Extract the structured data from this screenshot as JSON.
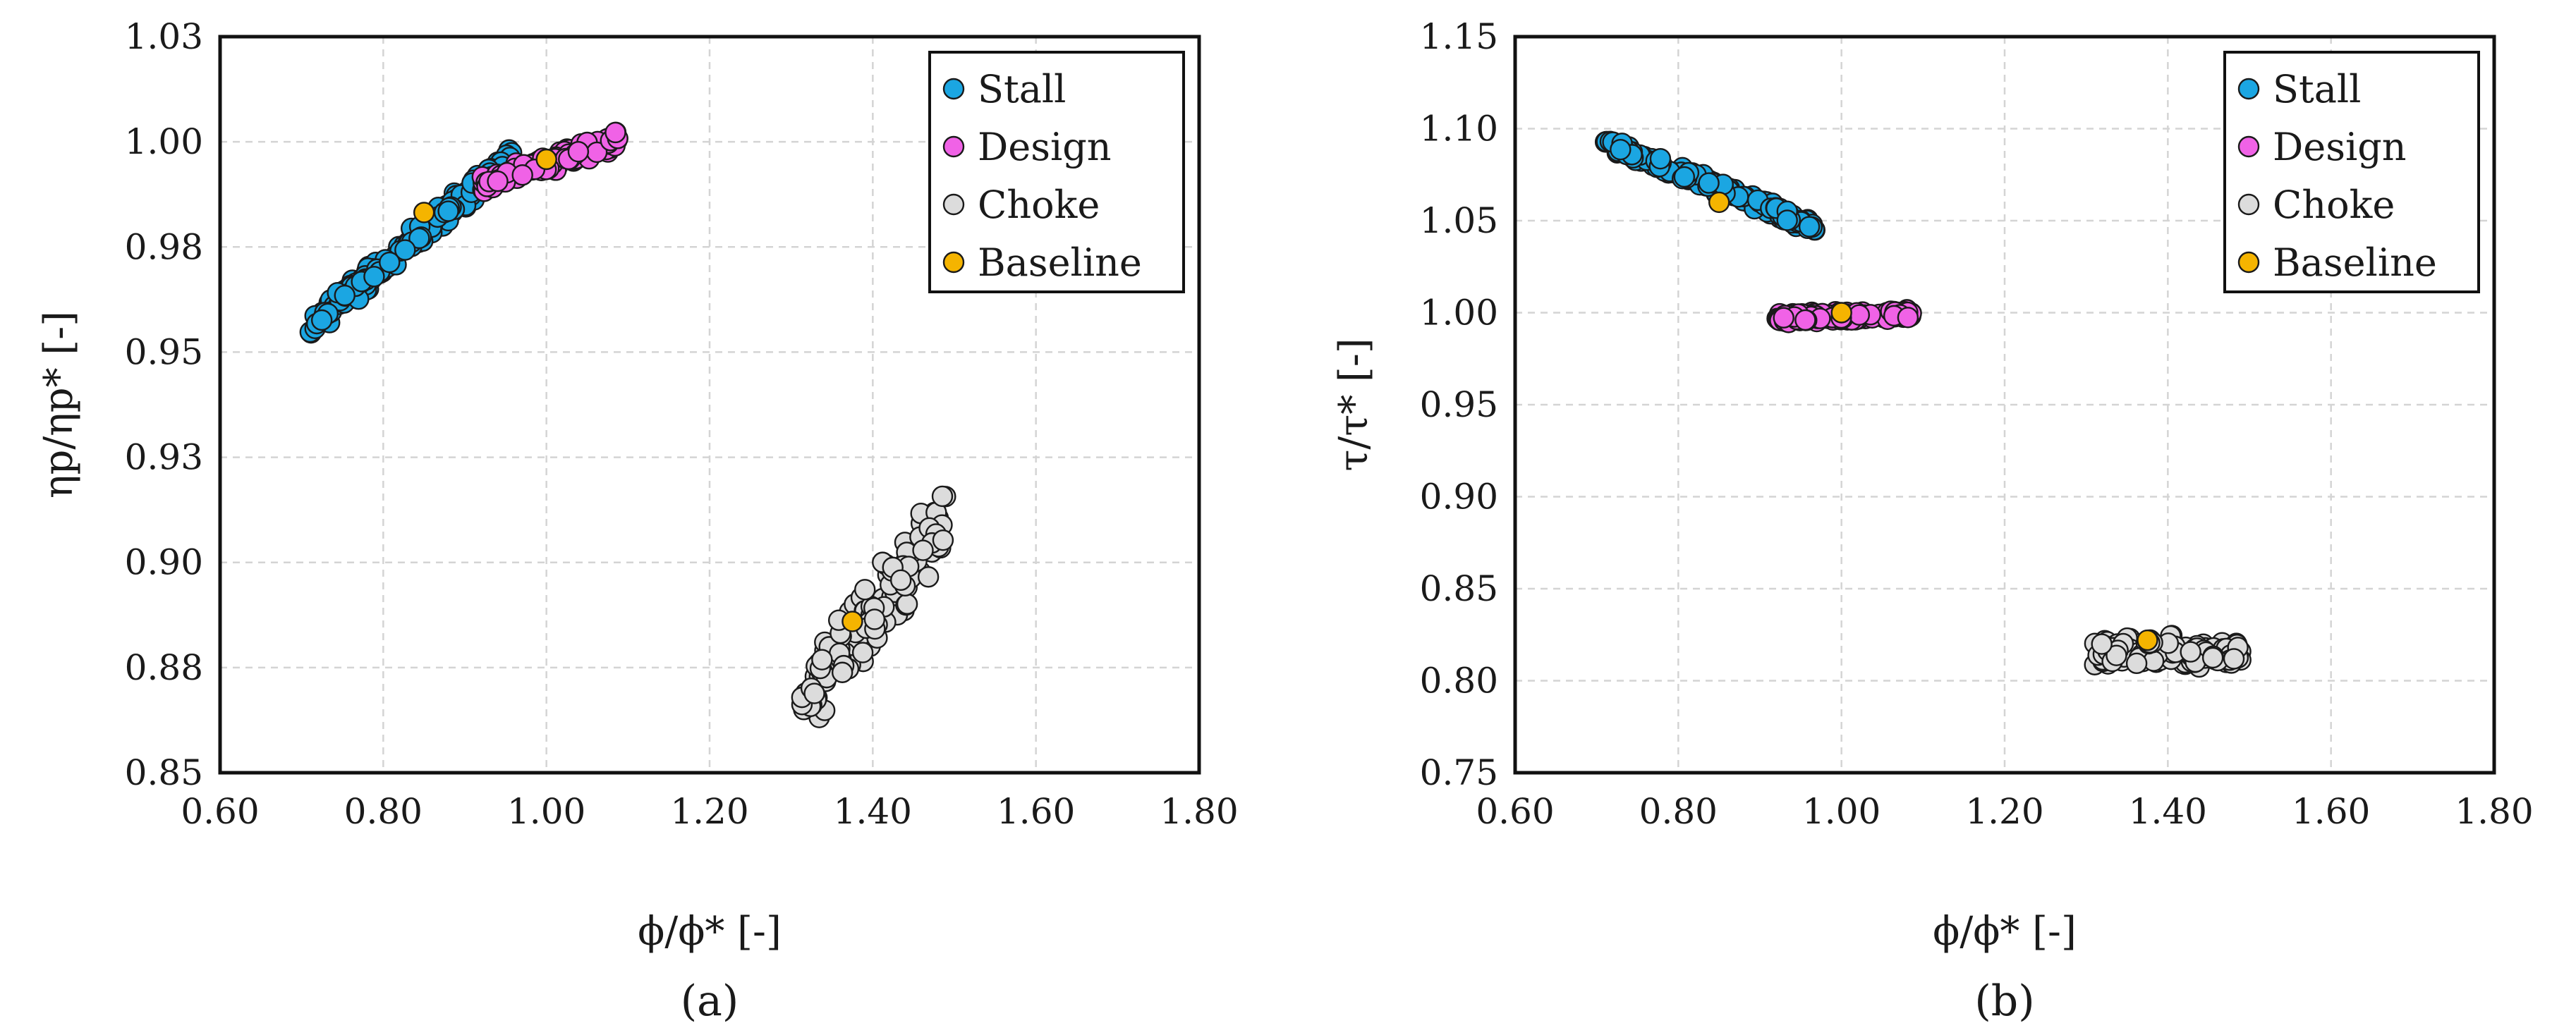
{
  "colors": {
    "stall": "#1ba6e2",
    "design": "#f062e6",
    "choke": "#dcdcdc",
    "baseline": "#f5b400"
  },
  "chart_data": [
    {
      "type": "scatter",
      "panel_label": "(a)",
      "xlabel": "ϕ/ϕ* [-]",
      "ylabel": "ηp/ηp* [-]",
      "xlim": [
        0.6,
        1.8
      ],
      "ylim": [
        0.85,
        1.03
      ],
      "x_ticks": [
        "0.60",
        "0.80",
        "1.00",
        "1.20",
        "1.40",
        "1.60",
        "1.80"
      ],
      "y_ticks": [
        "0.85",
        "0.88",
        "0.90",
        "0.93",
        "0.95",
        "0.98",
        "1.00",
        "1.03"
      ],
      "grid": true,
      "legend_position": "top-right",
      "series": [
        {
          "name": "Stall",
          "color": "#1ba6e2",
          "n": 190,
          "x_range": [
            0.71,
            0.96
          ],
          "y_line": [
            0.959,
            1.001
          ],
          "y_spread": 0.004
        },
        {
          "name": "Design",
          "color": "#f062e6",
          "n": 140,
          "x_range": [
            0.92,
            1.09
          ],
          "y_line": [
            0.994,
            1.005
          ],
          "y_spread": 0.003
        },
        {
          "name": "Choke",
          "color": "#dcdcdc",
          "n": 150,
          "x_range": [
            1.31,
            1.49
          ],
          "y_line": [
            0.866,
            0.912
          ],
          "y_spread": 0.012
        },
        {
          "name": "Baseline",
          "color": "#f5b400",
          "points": [
            {
              "x": 0.85,
              "y": 0.987
            },
            {
              "x": 1.0,
              "y": 1.0
            },
            {
              "x": 1.375,
              "y": 0.887
            }
          ]
        }
      ]
    },
    {
      "type": "scatter",
      "panel_label": "(b)",
      "xlabel": "ϕ/ϕ* [-]",
      "ylabel": "τ/τ* [-]",
      "xlim": [
        0.6,
        1.8
      ],
      "ylim": [
        0.75,
        1.15
      ],
      "x_ticks": [
        "0.60",
        "0.80",
        "1.00",
        "1.20",
        "1.40",
        "1.60",
        "1.80"
      ],
      "y_ticks": [
        "0.75",
        "0.80",
        "0.85",
        "0.90",
        "0.95",
        "1.00",
        "1.05",
        "1.10",
        "1.15"
      ],
      "grid": true,
      "legend_position": "top-right",
      "series": [
        {
          "name": "Stall",
          "color": "#1ba6e2",
          "n": 170,
          "x_range": [
            0.71,
            0.97
          ],
          "y_line": [
            1.092,
            1.046
          ],
          "y_spread": 0.005
        },
        {
          "name": "Design",
          "color": "#f062e6",
          "n": 150,
          "x_range": [
            0.92,
            1.09
          ],
          "y_line": [
            0.997,
            0.999
          ],
          "y_spread": 0.004
        },
        {
          "name": "Choke",
          "color": "#dcdcdc",
          "n": 150,
          "x_range": [
            1.31,
            1.49
          ],
          "y_line": [
            0.815,
            0.815
          ],
          "y_spread": 0.011
        },
        {
          "name": "Baseline",
          "color": "#f5b400",
          "points": [
            {
              "x": 0.85,
              "y": 1.06
            },
            {
              "x": 1.0,
              "y": 1.0
            },
            {
              "x": 1.375,
              "y": 0.822
            }
          ]
        }
      ]
    }
  ]
}
